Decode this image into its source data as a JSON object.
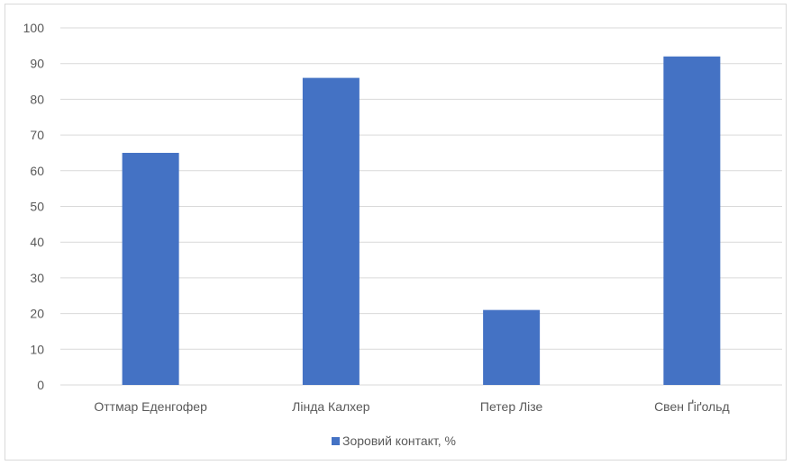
{
  "chart_data": {
    "type": "bar",
    "title": "",
    "xlabel": "",
    "ylabel": "",
    "categories": [
      "Оттмар Еденгофер",
      "Лінда Калхер",
      "Петер Лізе",
      "Свен Ґіґольд"
    ],
    "series": [
      {
        "name": "Зоровий контакт, %",
        "values": [
          65,
          86,
          21,
          92
        ],
        "color": "#4472c4"
      }
    ],
    "ylim": [
      0,
      100
    ],
    "yticks": [
      0,
      10,
      20,
      30,
      40,
      50,
      60,
      70,
      80,
      90,
      100
    ],
    "grid": true,
    "legend_position": "bottom"
  }
}
